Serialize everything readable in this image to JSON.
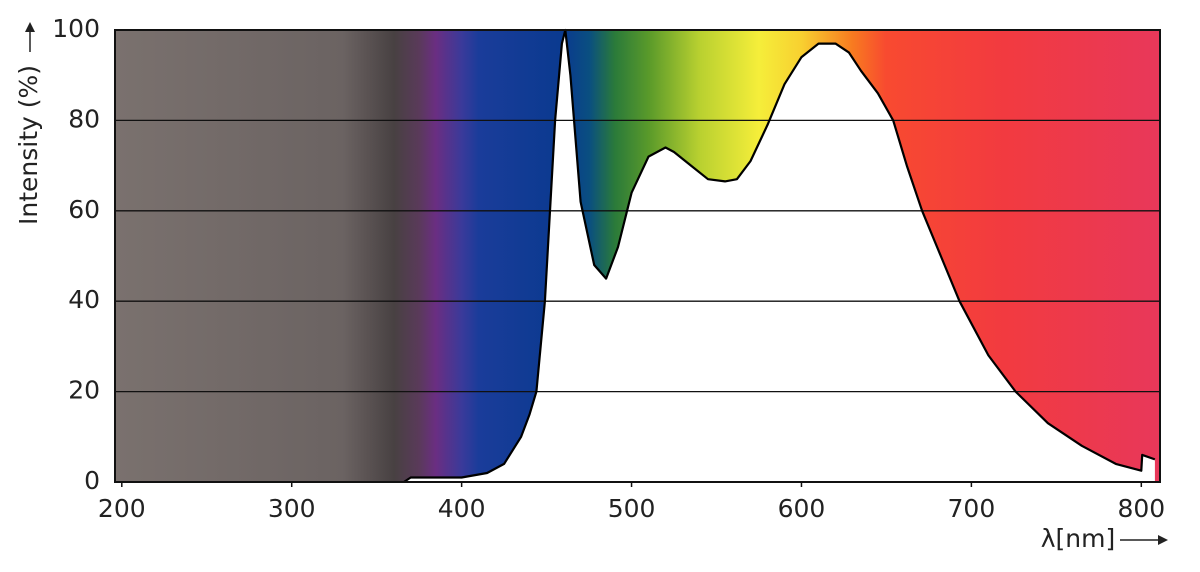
{
  "chart_data": {
    "type": "area",
    "x_label": "λ[nm]",
    "y_label": "Intensity (%)",
    "x": [
      366,
      370,
      400,
      415,
      425,
      435,
      440,
      444,
      449,
      455,
      459,
      461,
      464,
      470,
      478,
      485,
      492,
      500,
      510,
      520,
      525,
      535,
      545,
      555,
      562,
      570,
      580,
      590,
      600,
      610,
      620,
      628,
      635,
      645,
      654,
      662,
      671,
      682,
      693,
      710,
      726,
      745,
      765,
      785,
      795,
      800,
      800.5,
      808
    ],
    "values": [
      0,
      1,
      1,
      2,
      4,
      10,
      15,
      20,
      40,
      80,
      97,
      100,
      90,
      62,
      48,
      45,
      52,
      64,
      72,
      74,
      73,
      70,
      67,
      66.5,
      67,
      71,
      79,
      88,
      94,
      97,
      97,
      95,
      91,
      86,
      80,
      70,
      60,
      50,
      40,
      28,
      20,
      13,
      8,
      4,
      3,
      2.5,
      6,
      5
    ],
    "color": "#000000",
    "fill": "#ffffff",
    "xlim": [
      196,
      811
    ],
    "ylim": [
      0,
      100
    ],
    "xticks": [
      200,
      300,
      400,
      500,
      600,
      700,
      800
    ],
    "yticks": [
      0,
      20,
      40,
      60,
      80,
      100
    ],
    "grid": true
  }
}
